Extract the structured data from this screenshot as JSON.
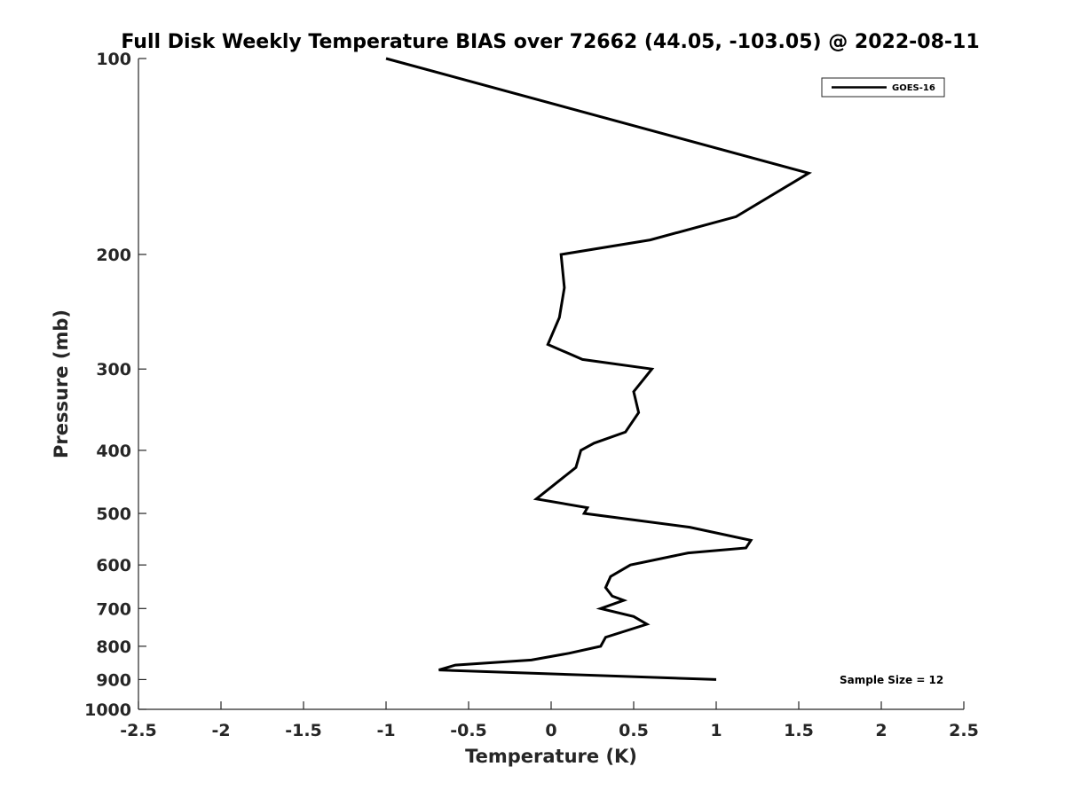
{
  "chart_data": {
    "type": "line",
    "title": "Full Disk Weekly Temperature BIAS over 72662 (44.05, -103.05) @ 2022-08-11",
    "xlabel": "Temperature (K)",
    "ylabel": "Pressure (mb)",
    "xlim": [
      -2.5,
      2.5
    ],
    "ylim": [
      100,
      1000
    ],
    "yscale": "log",
    "y_reversed": true,
    "x_ticks": [
      -2.5,
      -2,
      -1.5,
      -1,
      -0.5,
      0,
      0.5,
      1,
      1.5,
      2,
      2.5
    ],
    "x_tick_labels": [
      "-2.5",
      "-2",
      "-1.5",
      "-1",
      "-0.5",
      "0",
      "0.5",
      "1",
      "1.5",
      "2",
      "2.5"
    ],
    "y_ticks": [
      100,
      200,
      300,
      400,
      500,
      600,
      700,
      800,
      900,
      1000
    ],
    "y_tick_labels": [
      "100",
      "200",
      "300",
      "400",
      "500",
      "600",
      "700",
      "800",
      "900",
      "1000"
    ],
    "grid": false,
    "legend_position": "top-right",
    "series": [
      {
        "name": "GOES-16",
        "color": "#000000",
        "points": [
          [
            -1.0,
            100
          ],
          [
            1.56,
            150
          ],
          [
            1.12,
            175
          ],
          [
            0.6,
            190
          ],
          [
            0.06,
            200
          ],
          [
            0.08,
            225
          ],
          [
            0.05,
            250
          ],
          [
            -0.02,
            275
          ],
          [
            0.19,
            290
          ],
          [
            0.61,
            300
          ],
          [
            0.5,
            325
          ],
          [
            0.53,
            350
          ],
          [
            0.45,
            375
          ],
          [
            0.26,
            390
          ],
          [
            0.18,
            400
          ],
          [
            0.15,
            425
          ],
          [
            -0.09,
            475
          ],
          [
            0.22,
            490
          ],
          [
            0.2,
            500
          ],
          [
            0.84,
            525
          ],
          [
            1.21,
            550
          ],
          [
            1.18,
            565
          ],
          [
            0.83,
            575
          ],
          [
            0.48,
            600
          ],
          [
            0.36,
            625
          ],
          [
            0.33,
            650
          ],
          [
            0.37,
            670
          ],
          [
            0.44,
            680
          ],
          [
            0.3,
            700
          ],
          [
            0.5,
            720
          ],
          [
            0.58,
            740
          ],
          [
            0.33,
            775
          ],
          [
            0.3,
            800
          ],
          [
            0.11,
            820
          ],
          [
            -0.12,
            840
          ],
          [
            -0.58,
            855
          ],
          [
            -0.68,
            870
          ],
          [
            1.0,
            900
          ]
        ]
      }
    ],
    "annotations": [
      "Sample Size = 12"
    ]
  }
}
